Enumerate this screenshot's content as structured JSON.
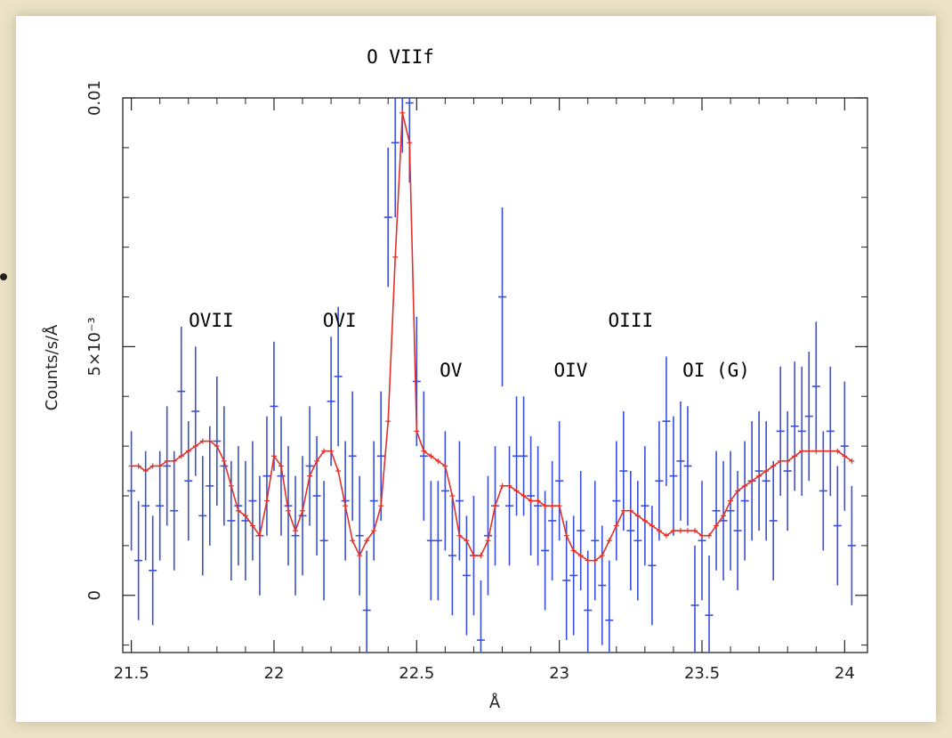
{
  "chart_data": {
    "type": "line",
    "title": "O VIIf",
    "xlabel": "Å",
    "ylabel": "Counts/s/Å",
    "xlim": [
      21.47,
      24.08
    ],
    "ylim": [
      -0.00115,
      0.01
    ],
    "x_ticks": [
      {
        "value": 21.5,
        "label": "21.5"
      },
      {
        "value": 22,
        "label": "22"
      },
      {
        "value": 22.5,
        "label": "22.5"
      },
      {
        "value": 23,
        "label": "23"
      },
      {
        "value": 23.5,
        "label": "23.5"
      },
      {
        "value": 24,
        "label": "24"
      }
    ],
    "y_ticks": [
      {
        "value": 0,
        "label": "0"
      },
      {
        "value": 0.005,
        "label": "5×10⁻³"
      },
      {
        "value": 0.01,
        "label": "0.01"
      }
    ],
    "annotations": [
      {
        "text": "OVII",
        "x": 21.78,
        "y": 0.0054
      },
      {
        "text": "OVI",
        "x": 22.23,
        "y": 0.0054
      },
      {
        "text": "OV",
        "x": 22.62,
        "y": 0.0044
      },
      {
        "text": "OIV",
        "x": 23.04,
        "y": 0.0044
      },
      {
        "text": "OIII",
        "x": 23.25,
        "y": 0.0054
      },
      {
        "text": "OI (G)",
        "x": 23.55,
        "y": 0.0044
      }
    ],
    "series": [
      {
        "role": "data",
        "style": "error-bars",
        "color": "#3a4fd6",
        "x": [
          21.5,
          21.525,
          21.55,
          21.575,
          21.6,
          21.625,
          21.65,
          21.675,
          21.7,
          21.725,
          21.75,
          21.775,
          21.8,
          21.825,
          21.85,
          21.875,
          21.9,
          21.925,
          21.95,
          21.975,
          22.0,
          22.025,
          22.05,
          22.075,
          22.1,
          22.125,
          22.15,
          22.175,
          22.2,
          22.225,
          22.25,
          22.275,
          22.3,
          22.325,
          22.35,
          22.375,
          22.4,
          22.425,
          22.45,
          22.475,
          22.5,
          22.525,
          22.55,
          22.575,
          22.6,
          22.625,
          22.65,
          22.675,
          22.7,
          22.725,
          22.75,
          22.775,
          22.8,
          22.825,
          22.85,
          22.875,
          22.9,
          22.925,
          22.95,
          22.975,
          23.0,
          23.025,
          23.05,
          23.075,
          23.1,
          23.125,
          23.15,
          23.175,
          23.2,
          23.225,
          23.25,
          23.275,
          23.3,
          23.325,
          23.35,
          23.375,
          23.4,
          23.425,
          23.45,
          23.475,
          23.5,
          23.525,
          23.55,
          23.575,
          23.6,
          23.625,
          23.65,
          23.675,
          23.7,
          23.725,
          23.75,
          23.775,
          23.8,
          23.825,
          23.85,
          23.875,
          23.9,
          23.925,
          23.95,
          23.975,
          24.0,
          24.025
        ],
        "y": [
          0.0021,
          0.0007,
          0.0018,
          0.0005,
          0.0018,
          0.0026,
          0.0017,
          0.0041,
          0.0023,
          0.0037,
          0.0016,
          0.0022,
          0.0031,
          0.0026,
          0.0015,
          0.0018,
          0.0015,
          0.0019,
          0.0012,
          0.0024,
          0.0038,
          0.0024,
          0.0018,
          0.0012,
          0.0016,
          0.0026,
          0.002,
          0.0011,
          0.0039,
          0.0044,
          0.0019,
          0.0028,
          0.0012,
          -0.0003,
          0.0019,
          0.0028,
          0.0076,
          0.0091,
          0.0106,
          0.0099,
          0.0043,
          0.0028,
          0.0011,
          0.0011,
          0.0021,
          0.0008,
          0.0019,
          0.0004,
          0.0008,
          -0.0009,
          0.0012,
          0.0018,
          0.006,
          0.0018,
          0.0028,
          0.0028,
          0.002,
          0.0018,
          0.0009,
          0.0015,
          0.0023,
          0.0003,
          0.0004,
          0.0013,
          -0.0003,
          0.0011,
          0.0002,
          -0.0005,
          0.0019,
          0.0025,
          0.0013,
          0.0011,
          0.0018,
          0.0006,
          0.0023,
          0.0035,
          0.0024,
          0.0027,
          0.0026,
          -0.0002,
          0.0011,
          -0.0004,
          0.0017,
          0.0015,
          0.0017,
          0.0013,
          0.0019,
          0.0023,
          0.0025,
          0.0023,
          0.0015,
          0.0033,
          0.0025,
          0.0034,
          0.0033,
          0.0036,
          0.0042,
          0.0021,
          0.0033,
          0.0014,
          0.003,
          0.001
        ],
        "err": [
          0.0012,
          0.0012,
          0.0011,
          0.0011,
          0.0011,
          0.0012,
          0.0012,
          0.0013,
          0.0012,
          0.0013,
          0.0012,
          0.0012,
          0.0013,
          0.0012,
          0.0012,
          0.0012,
          0.0012,
          0.0012,
          0.0012,
          0.0012,
          0.0013,
          0.0012,
          0.0012,
          0.0012,
          0.0012,
          0.0012,
          0.0012,
          0.0012,
          0.0013,
          0.0014,
          0.0012,
          0.0013,
          0.0012,
          0.0012,
          0.0012,
          0.0013,
          0.0014,
          0.0015,
          0.0017,
          0.0016,
          0.0013,
          0.0013,
          0.0012,
          0.0012,
          0.0012,
          0.0012,
          0.0012,
          0.0012,
          0.0012,
          0.0012,
          0.0012,
          0.0012,
          0.0018,
          0.0012,
          0.0012,
          0.0012,
          0.0012,
          0.0012,
          0.0012,
          0.0012,
          0.0012,
          0.0012,
          0.0012,
          0.0012,
          0.0012,
          0.0012,
          0.0012,
          0.0012,
          0.0012,
          0.0012,
          0.0012,
          0.0012,
          0.0012,
          0.0012,
          0.0012,
          0.0013,
          0.0012,
          0.0012,
          0.0012,
          0.0012,
          0.0012,
          0.0012,
          0.0012,
          0.0012,
          0.0012,
          0.0012,
          0.0012,
          0.0012,
          0.0012,
          0.0012,
          0.0012,
          0.0013,
          0.0012,
          0.0013,
          0.0013,
          0.0013,
          0.0013,
          0.0012,
          0.0013,
          0.0012,
          0.0013,
          0.0012
        ]
      },
      {
        "role": "model",
        "style": "line-with-markers",
        "color": "#e0302a",
        "x": [
          21.5,
          21.525,
          21.55,
          21.575,
          21.6,
          21.625,
          21.65,
          21.675,
          21.7,
          21.725,
          21.75,
          21.775,
          21.8,
          21.825,
          21.85,
          21.875,
          21.9,
          21.925,
          21.95,
          21.975,
          22.0,
          22.025,
          22.05,
          22.075,
          22.1,
          22.125,
          22.15,
          22.175,
          22.2,
          22.225,
          22.25,
          22.275,
          22.3,
          22.325,
          22.35,
          22.375,
          22.4,
          22.425,
          22.45,
          22.475,
          22.5,
          22.525,
          22.55,
          22.575,
          22.6,
          22.625,
          22.65,
          22.675,
          22.7,
          22.725,
          22.75,
          22.775,
          22.8,
          22.825,
          22.85,
          22.875,
          22.9,
          22.925,
          22.95,
          22.975,
          23.0,
          23.025,
          23.05,
          23.075,
          23.1,
          23.125,
          23.15,
          23.175,
          23.2,
          23.225,
          23.25,
          23.275,
          23.3,
          23.325,
          23.35,
          23.375,
          23.4,
          23.425,
          23.45,
          23.475,
          23.5,
          23.525,
          23.55,
          23.575,
          23.6,
          23.625,
          23.65,
          23.675,
          23.7,
          23.725,
          23.75,
          23.775,
          23.8,
          23.825,
          23.85,
          23.875,
          23.9,
          23.925,
          23.95,
          23.975,
          24.0,
          24.025
        ],
        "y": [
          0.0026,
          0.0026,
          0.0025,
          0.0026,
          0.0026,
          0.0027,
          0.0027,
          0.0028,
          0.0029,
          0.003,
          0.0031,
          0.0031,
          0.003,
          0.0027,
          0.0022,
          0.0017,
          0.0016,
          0.0014,
          0.0012,
          0.0019,
          0.0028,
          0.0026,
          0.0017,
          0.0013,
          0.0017,
          0.0024,
          0.0027,
          0.0029,
          0.0029,
          0.0025,
          0.0018,
          0.0011,
          0.0008,
          0.0011,
          0.0013,
          0.0018,
          0.0035,
          0.0068,
          0.0097,
          0.0091,
          0.0033,
          0.0029,
          0.0028,
          0.0027,
          0.0026,
          0.002,
          0.0012,
          0.0011,
          0.0008,
          0.0008,
          0.0011,
          0.0018,
          0.0022,
          0.0022,
          0.0021,
          0.002,
          0.0019,
          0.0019,
          0.0018,
          0.0018,
          0.0018,
          0.0012,
          0.0009,
          0.0008,
          0.0007,
          0.0007,
          0.0008,
          0.0011,
          0.0014,
          0.0017,
          0.0017,
          0.0016,
          0.0015,
          0.0014,
          0.0013,
          0.0012,
          0.0013,
          0.0013,
          0.0013,
          0.0013,
          0.0012,
          0.0012,
          0.0014,
          0.0016,
          0.0019,
          0.0021,
          0.0022,
          0.0023,
          0.0024,
          0.0025,
          0.0026,
          0.0027,
          0.0027,
          0.0028,
          0.0029,
          0.0029,
          0.0029,
          0.0029,
          0.0029,
          0.0029,
          0.0028,
          0.0027
        ]
      }
    ]
  }
}
